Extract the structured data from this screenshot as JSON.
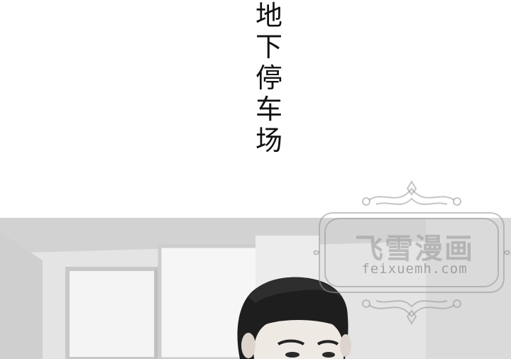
{
  "caption": {
    "chars": [
      "地",
      "下",
      "停",
      "车",
      "场"
    ]
  },
  "watermark": {
    "title": "飞雪漫画",
    "url": "feixuemh.com"
  }
}
